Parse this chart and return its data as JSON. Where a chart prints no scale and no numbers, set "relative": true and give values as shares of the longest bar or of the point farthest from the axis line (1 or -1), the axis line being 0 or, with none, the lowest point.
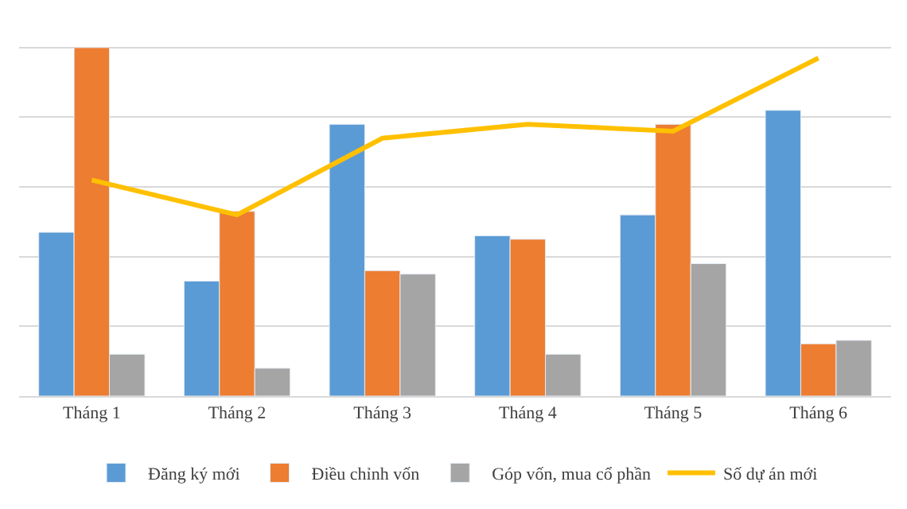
{
  "chart_data": {
    "type": "bar",
    "relative": true,
    "categories": [
      "Tháng 1",
      "Tháng 2",
      "Tháng 3",
      "Tháng 4",
      "Tháng 5",
      "Tháng 6"
    ],
    "series": [
      {
        "name": "Đăng ký mới",
        "color": "#5b9bd5",
        "values": [
          0.47,
          0.33,
          0.78,
          0.46,
          0.52,
          0.82
        ]
      },
      {
        "name": "Điều chỉnh vốn",
        "color": "#ed7d31",
        "values": [
          1,
          0.53,
          0.36,
          0.45,
          0.78,
          0.15
        ]
      },
      {
        "name": "Góp vốn, mua cổ phần",
        "color": "#a5a5a5",
        "values": [
          0.12,
          0.08,
          0.35,
          0.12,
          0.38,
          0.16
        ]
      },
      {
        "name": "Số dự án mới",
        "color": "#ffc000",
        "type": "line",
        "values": [
          0.62,
          0.52,
          0.74,
          0.78,
          0.76,
          0.97
        ]
      }
    ],
    "grid": "y",
    "legend": "bottom",
    "marker": "none",
    "line_style": "solid"
  }
}
